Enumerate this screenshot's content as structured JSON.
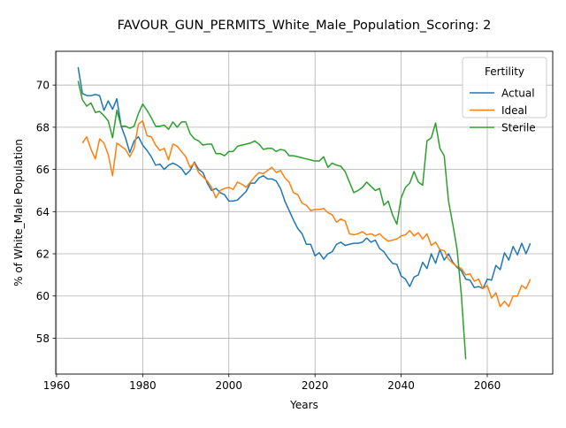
{
  "chart_data": {
    "type": "line",
    "title": "FAVOUR_GUN_PERMITS_White_Male_Population_Scoring: 2",
    "xlabel": "Years",
    "ylabel": "% of White_Male Population",
    "xlim": [
      1959.8,
      2075.2
    ],
    "ylim": [
      56.3,
      71.6
    ],
    "xticks": [
      1960,
      1980,
      2000,
      2020,
      2040,
      2060
    ],
    "yticks": [
      58,
      60,
      62,
      64,
      66,
      68,
      70
    ],
    "grid": true,
    "legend": {
      "title": "Fertility",
      "placement": "top-right"
    },
    "series": [
      {
        "name": "Actual",
        "color": "#1f77b4",
        "x": [
          1965,
          1966,
          1967,
          1968,
          1969,
          1970,
          1971,
          1972,
          1973,
          1974,
          1975,
          1976,
          1977,
          1978,
          1979,
          1980,
          1981,
          1982,
          1983,
          1984,
          1985,
          1986,
          1987,
          1988,
          1989,
          1990,
          1991,
          1992,
          1993,
          1994,
          1995,
          1996,
          1997,
          1998,
          1999,
          2000,
          2001,
          2002,
          2003,
          2004,
          2005,
          2006,
          2007,
          2008,
          2009,
          2010,
          2011,
          2012,
          2013,
          2014,
          2015,
          2016,
          2017,
          2018,
          2019,
          2020,
          2021,
          2022,
          2023,
          2024,
          2025,
          2026,
          2027,
          2028,
          2029,
          2030,
          2031,
          2032,
          2033,
          2034,
          2035,
          2036,
          2037,
          2038,
          2039,
          2040,
          2041,
          2042,
          2043,
          2044,
          2045,
          2046,
          2047,
          2048,
          2049,
          2050,
          2051,
          2052,
          2053,
          2054,
          2055,
          2056,
          2057,
          2058,
          2059,
          2060,
          2061,
          2062,
          2063,
          2064,
          2065,
          2066,
          2067,
          2068,
          2069,
          2070
        ],
        "values": [
          70.85,
          69.6,
          69.5,
          69.5,
          69.55,
          69.5,
          68.8,
          69.25,
          68.85,
          69.35,
          68.05,
          67.5,
          66.8,
          67.35,
          67.55,
          67.15,
          66.9,
          66.6,
          66.2,
          66.25,
          66.0,
          66.2,
          66.3,
          66.2,
          66.05,
          65.75,
          65.95,
          66.35,
          66.0,
          65.85,
          65.35,
          65.0,
          65.1,
          64.9,
          64.8,
          64.5,
          64.5,
          64.55,
          64.75,
          64.95,
          65.35,
          65.35,
          65.6,
          65.7,
          65.55,
          65.55,
          65.45,
          65.1,
          64.5,
          64.05,
          63.6,
          63.2,
          62.95,
          62.45,
          62.45,
          61.9,
          62.05,
          61.75,
          62.0,
          62.1,
          62.45,
          62.55,
          62.4,
          62.45,
          62.5,
          62.5,
          62.55,
          62.75,
          62.55,
          62.65,
          62.25,
          62.1,
          61.8,
          61.55,
          61.5,
          60.95,
          60.8,
          60.45,
          60.9,
          61.0,
          61.6,
          61.3,
          62.0,
          61.55,
          62.2,
          61.7,
          62.0,
          61.6,
          61.35,
          61.2,
          60.8,
          60.75,
          60.4,
          60.45,
          60.35,
          60.8,
          60.75,
          61.45,
          61.25,
          62.05,
          61.7,
          62.35,
          61.95,
          62.5,
          62.0,
          62.5
        ]
      },
      {
        "name": "Ideal",
        "color": "#ff7f0e",
        "x": [
          1966,
          1967,
          1968,
          1969,
          1970,
          1971,
          1972,
          1973,
          1974,
          1975,
          1976,
          1977,
          1978,
          1979,
          1980,
          1981,
          1982,
          1983,
          1984,
          1985,
          1986,
          1987,
          1988,
          1989,
          1990,
          1991,
          1992,
          1993,
          1994,
          1995,
          1996,
          1997,
          1998,
          1999,
          2000,
          2001,
          2002,
          2003,
          2004,
          2005,
          2006,
          2007,
          2008,
          2009,
          2010,
          2011,
          2012,
          2013,
          2014,
          2015,
          2016,
          2017,
          2018,
          2019,
          2020,
          2021,
          2022,
          2023,
          2024,
          2025,
          2026,
          2027,
          2028,
          2029,
          2030,
          2031,
          2032,
          2033,
          2034,
          2035,
          2036,
          2037,
          2038,
          2039,
          2040,
          2041,
          2042,
          2043,
          2044,
          2045,
          2046,
          2047,
          2048,
          2049,
          2050,
          2051,
          2052,
          2053,
          2054,
          2055,
          2056,
          2057,
          2058,
          2059,
          2060,
          2061,
          2062,
          2063,
          2064,
          2065,
          2066,
          2067,
          2068,
          2069,
          2070
        ],
        "values": [
          67.25,
          67.55,
          66.95,
          66.5,
          67.45,
          67.25,
          66.7,
          65.7,
          67.25,
          67.1,
          66.95,
          66.6,
          67.0,
          68.15,
          68.3,
          67.6,
          67.55,
          67.15,
          66.9,
          67.0,
          66.45,
          67.2,
          67.1,
          66.85,
          66.6,
          66.1,
          66.3,
          65.85,
          65.65,
          65.45,
          65.15,
          64.65,
          65.0,
          65.1,
          65.15,
          65.05,
          65.4,
          65.3,
          65.15,
          65.4,
          65.65,
          65.85,
          65.8,
          65.95,
          66.1,
          65.85,
          65.95,
          65.6,
          65.4,
          64.9,
          64.8,
          64.4,
          64.3,
          64.05,
          64.1,
          64.1,
          64.15,
          63.95,
          63.85,
          63.5,
          63.65,
          63.55,
          62.95,
          62.9,
          62.95,
          63.05,
          62.9,
          62.95,
          62.85,
          62.95,
          62.75,
          62.6,
          62.65,
          62.7,
          62.85,
          62.9,
          63.1,
          62.85,
          63.0,
          62.7,
          62.95,
          62.4,
          62.55,
          62.2,
          62.15,
          61.75,
          61.55,
          61.4,
          61.3,
          61.0,
          61.05,
          60.7,
          60.8,
          60.35,
          60.5,
          59.9,
          60.15,
          59.5,
          59.75,
          59.5,
          60.0,
          60.0,
          60.5,
          60.35,
          60.8
        ]
      },
      {
        "name": "Sterile",
        "color": "#2ca02c",
        "x": [
          1965,
          1966,
          1967,
          1968,
          1969,
          1970,
          1971,
          1972,
          1973,
          1974,
          1975,
          1976,
          1977,
          1978,
          1979,
          1980,
          1981,
          1982,
          1983,
          1984,
          1985,
          1986,
          1987,
          1988,
          1989,
          1990,
          1991,
          1992,
          1993,
          1994,
          1995,
          1996,
          1997,
          1998,
          1999,
          2000,
          2001,
          2002,
          2003,
          2004,
          2005,
          2006,
          2007,
          2008,
          2009,
          2010,
          2011,
          2012,
          2013,
          2014,
          2015,
          2016,
          2017,
          2018,
          2019,
          2020,
          2021,
          2022,
          2023,
          2024,
          2025,
          2026,
          2027,
          2028,
          2029,
          2030,
          2031,
          2032,
          2033,
          2034,
          2035,
          2036,
          2037,
          2038,
          2039,
          2040,
          2041,
          2042,
          2043,
          2044,
          2045,
          2046,
          2047,
          2048,
          2049,
          2050,
          2051,
          2052,
          2053,
          2054,
          2055
        ],
        "values": [
          70.2,
          69.3,
          69.0,
          69.15,
          68.7,
          68.75,
          68.55,
          68.3,
          67.5,
          68.8,
          68.05,
          68.05,
          67.95,
          68.05,
          68.65,
          69.1,
          68.8,
          68.45,
          68.05,
          68.05,
          68.1,
          67.9,
          68.25,
          68.0,
          68.25,
          68.25,
          67.7,
          67.45,
          67.35,
          67.15,
          67.2,
          67.2,
          66.75,
          66.75,
          66.65,
          66.85,
          66.85,
          67.1,
          67.15,
          67.2,
          67.25,
          67.35,
          67.2,
          66.95,
          67.0,
          67.0,
          66.85,
          66.95,
          66.9,
          66.65,
          66.65,
          66.6,
          66.55,
          66.5,
          66.45,
          66.4,
          66.4,
          66.6,
          66.1,
          66.3,
          66.2,
          66.15,
          65.9,
          65.4,
          64.9,
          65.0,
          65.15,
          65.4,
          65.2,
          65.0,
          65.1,
          64.3,
          64.5,
          63.85,
          63.4,
          64.65,
          65.15,
          65.35,
          65.9,
          65.4,
          65.25,
          67.35,
          67.5,
          68.2,
          67.0,
          66.65,
          64.5,
          63.4,
          62.2,
          60.0,
          57.0
        ]
      }
    ]
  }
}
